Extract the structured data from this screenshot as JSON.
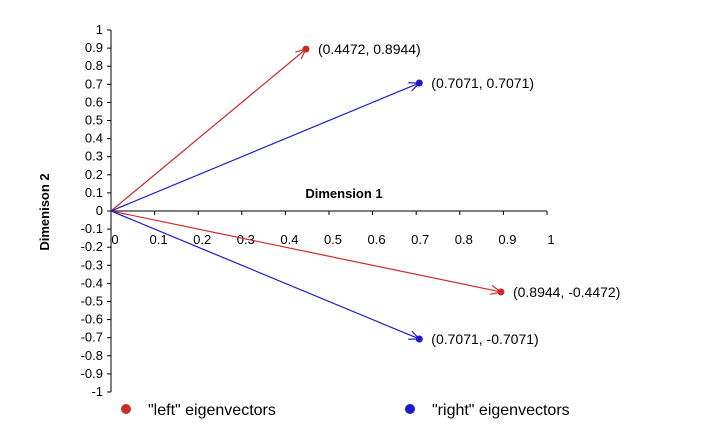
{
  "chart_data": {
    "type": "scatter",
    "title": "",
    "xlabel": "Dimension 1",
    "ylabel": "Dimenison 2",
    "xlim": [
      0,
      1
    ],
    "ylim": [
      -1,
      1
    ],
    "x_ticks": [
      "0",
      "0.1",
      "0.2",
      "0.3",
      "0.4",
      "0.5",
      "0.6",
      "0.7",
      "0.8",
      "0.9",
      "1"
    ],
    "y_ticks": [
      "1",
      "0.9",
      "0.8",
      "0.7",
      "0.6",
      "0.5",
      "0.4",
      "0.3",
      "0.2",
      "0.1",
      "0",
      "-0.1",
      "-0.2",
      "-0.3",
      "-0.4",
      "-0.5",
      "-0.6",
      "-0.7",
      "-0.8",
      "-0.9",
      "-1"
    ],
    "grid": false,
    "legend_position": "bottom",
    "series": [
      {
        "name": "\"left\" eigenvectors",
        "color": "#cc2a2a",
        "points": [
          {
            "x": 0.4472,
            "y": 0.8944,
            "label": "(0.4472, 0.8944)"
          },
          {
            "x": 0.8944,
            "y": -0.4472,
            "label": "(0.8944, -0.4472)"
          }
        ]
      },
      {
        "name": "\"right\" eigenvectors",
        "color": "#1a1acc",
        "points": [
          {
            "x": 0.7071,
            "y": 0.7071,
            "label": "(0.7071, 0.7071)"
          },
          {
            "x": 0.7071,
            "y": -0.7071,
            "label": "(0.7071, -0.7071)"
          }
        ]
      }
    ]
  }
}
